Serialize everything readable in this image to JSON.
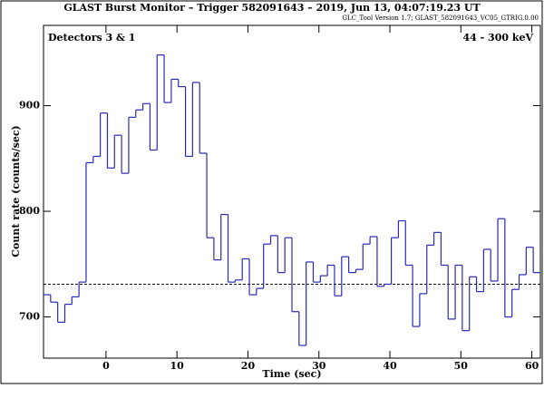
{
  "chart_data": {
    "type": "histogram",
    "title": "GLAST Burst Monitor  –  Trigger 582091643  –  2019, Jun 13, 04:07:19.23 UT",
    "subtitle": "GLC_Tool Version 1.7; GLAST_582091643_VC05_GTRIG.0.00",
    "annotations": [
      "Detectors 3 & 1",
      "44 - 300 keV"
    ],
    "x_label": "Time (sec)",
    "y_label": "Count rate (counts/sec)",
    "color": "#2a2ab8",
    "background_level": 731,
    "bins": [
      -8.8,
      -7.8,
      -6.8,
      -5.8,
      -4.8,
      -3.8,
      -2.8,
      -1.8,
      -0.8,
      0.2,
      1.2,
      2.2,
      3.2,
      4.2,
      5.2,
      6.2,
      7.2,
      8.2,
      9.2,
      10.2,
      11.2,
      12.2,
      13.2,
      14.2,
      15.2,
      16.2,
      17.2,
      18.2,
      19.2,
      20.2,
      21.2,
      22.2,
      23.2,
      24.2,
      25.2,
      26.2,
      27.2,
      28.2,
      29.2,
      30.2,
      31.2,
      32.2,
      33.2,
      34.2,
      35.2,
      36.2,
      37.2,
      38.2,
      39.2,
      40.2,
      41.2,
      42.2,
      43.2,
      44.2,
      45.2,
      46.2,
      47.2,
      48.2,
      49.2,
      50.2,
      51.2,
      52.2,
      53.2,
      54.2,
      55.2,
      56.2,
      57.2,
      58.2,
      59.2,
      60.2,
      61.2
    ],
    "values": [
      721,
      714,
      695,
      712,
      719,
      733,
      846,
      852,
      893,
      841,
      872,
      836,
      889,
      896,
      902,
      858,
      948,
      903,
      925,
      918,
      852,
      922,
      855,
      775,
      754,
      797,
      733,
      735,
      755,
      721,
      727,
      769,
      777,
      742,
      775,
      705,
      673,
      752,
      733,
      739,
      749,
      720,
      757,
      742,
      745,
      769,
      776,
      729,
      731,
      775,
      791,
      749,
      691,
      722,
      768,
      780,
      749,
      698,
      749,
      687,
      738,
      724,
      764,
      734,
      793,
      700,
      726,
      740,
      766,
      742
    ],
    "xlim": [
      -8.8,
      61.2
    ],
    "ylim": [
      661,
      976
    ],
    "xticks": [
      0,
      10,
      20,
      30,
      40,
      50,
      60
    ],
    "yticks": [
      700,
      800,
      900
    ]
  }
}
